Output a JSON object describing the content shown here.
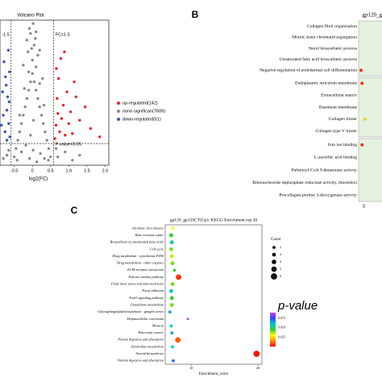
{
  "chart_data": [
    {
      "type": "scatter",
      "title": "Volcano Plot",
      "xlabel": "log2(FC)",
      "xlim": [
        -0.89,
        2.1
      ],
      "ylim": [
        0,
        8.7
      ],
      "xticks": [
        -0.5,
        0,
        0.5,
        {
          "value": 1,
          "label": "1.0"
        },
        1.5,
        {
          "value": 2,
          "label": "2.0"
        }
      ],
      "vlines": [
        -0.585,
        0.585
      ],
      "vline_labels": [
        "-1.5",
        "FC=1.5"
      ],
      "hline": 1.3,
      "hline_label": "P-value=0.05",
      "series": [
        {
          "name": "up-regulated(142)",
          "color": "#e3262b",
          "x": [
            0.62,
            0.65,
            0.7,
            0.68,
            0.75,
            0.8,
            0.72,
            0.85,
            0.9,
            0.95,
            1.0,
            1.05,
            0.78,
            1.1,
            1.2,
            1.3,
            1.45,
            1.6,
            1.85,
            0.66,
            0.88,
            1.15
          ],
          "values": [
            1.6,
            2.4,
            3.1,
            4.0,
            2.0,
            2.8,
            5.2,
            3.6,
            1.8,
            4.4,
            2.5,
            3.2,
            6.4,
            1.9,
            4.1,
            2.7,
            3.5,
            2.2,
            1.7,
            5.8,
            6.8,
            5.0
          ]
        },
        {
          "name": "none-significan(7609)",
          "color": "#8a8a8a",
          "x": [
            -0.5,
            -0.45,
            -0.4,
            -0.35,
            -0.3,
            -0.25,
            -0.2,
            -0.15,
            -0.1,
            -0.05,
            0,
            0.05,
            0.1,
            0.15,
            0.2,
            0.25,
            0.3,
            0.35,
            0.4,
            0.45,
            0.5,
            -0.42,
            -0.3,
            -0.18,
            -0.08,
            0.02,
            0.12,
            0.22,
            0.33,
            0.44,
            -0.35,
            -0.22,
            -0.1,
            0.0,
            0.1,
            0.2,
            0.32,
            -0.25,
            -0.12,
            0.05,
            0.15,
            0.28,
            -0.15,
            -0.05,
            0.08,
            0.2,
            -0.08,
            0.02,
            0.1,
            -0.02,
            0.7,
            0.9,
            1.1,
            -0.7,
            -0.8,
            0.65,
            1.3,
            -0.65,
            -0.05,
            0.03
          ],
          "values": [
            0.5,
            1.0,
            1.5,
            2.0,
            2.5,
            3.0,
            3.5,
            4.0,
            4.5,
            5.0,
            5.5,
            5.0,
            4.5,
            4.0,
            3.5,
            3.0,
            2.5,
            2.0,
            1.5,
            1.0,
            0.5,
            0.3,
            0.8,
            1.2,
            0.4,
            0.9,
            0.2,
            0.7,
            0.4,
            0.3,
            3.0,
            4.6,
            5.6,
            6.3,
            5.9,
            4.9,
            3.6,
            6.0,
            6.8,
            7.2,
            6.6,
            5.2,
            7.5,
            7.9,
            7.6,
            6.9,
            8.2,
            8.5,
            8.0,
            7.0,
            0.5,
            0.8,
            0.3,
            0.6,
            0.4,
            1.0,
            0.6,
            0.9,
            1.8,
            2.7
          ]
        },
        {
          "name": "down-regulated(51)",
          "color": "#3a53b5",
          "x": [
            -0.62,
            -0.65,
            -0.7,
            -0.68,
            -0.75,
            -0.8,
            -0.72,
            -0.85,
            -0.63,
            -0.78,
            -0.66,
            -0.7,
            -0.82,
            -0.64,
            -0.74
          ],
          "values": [
            1.7,
            2.5,
            3.3,
            4.1,
            2.0,
            3.0,
            4.8,
            2.4,
            5.6,
            6.2,
            6.9,
            1.5,
            4.4,
            3.8,
            5.3
          ]
        }
      ]
    },
    {
      "type": "dot",
      "label": "B",
      "title": "gp120_g",
      "xlabel": "E",
      "xlim": [
        0,
        1
      ],
      "categories": [
        "Collagen fibril organization",
        "Mitotic sister chromatid segregation",
        "Sterol biosynthetic process",
        "Unsaturated fatty acid biosynthetic process",
        "Negative regulation of endodermal cell differentiation",
        "Endoplasmic reticulum membrane",
        "Extracellular matrix",
        "Basement membrane",
        "Collagen trimer",
        "Collagen type V trimer",
        "Iron ion binding",
        "L-ascorbic acid binding",
        "Palmitoyl-CoA 9-desaturase activity",
        "Ribonucleoside-diphosphate reductase activity, thioredoxi",
        "Procollagen-proline 3-dioxygenase activity"
      ],
      "values": [
        null,
        null,
        null,
        null,
        0.05,
        0.07,
        null,
        null,
        0.13,
        null,
        0.07,
        null,
        null,
        null,
        null
      ],
      "colors": [
        null,
        null,
        null,
        null,
        "#e8321e",
        "#e8321e",
        null,
        null,
        "#e6d21e",
        null,
        "#e8321e",
        null,
        null,
        null,
        null
      ]
    },
    {
      "type": "dot",
      "label": "C",
      "title": "gp120_gp120CT(Up): KEGG Enrichment top 20",
      "xlabel": "Enrichment_score",
      "xlim": [
        6.1,
        20.6
      ],
      "xticks": [
        10,
        20
      ],
      "categories": [
        "Alcoholic liver disease",
        "Base excision repair",
        "Biosynthesis of unsaturated fatty acids",
        "Cell cycle",
        "Drug metabolism - cytochrome P450",
        "Drug metabolism - other enzymes",
        "ECM-receptor interaction",
        "Fanconi anemia pathway",
        "Fluid shear stress and atherosclerosis",
        "Focal adhesion",
        "FoxO signaling pathway",
        "Glutathione metabolism",
        "Glycosphingolipid biosynthesis - ganglio series",
        "Hepatocellular carcinoma",
        "Malaria",
        "Pancreatic cancer",
        "Protein digestion and absorption",
        "Pyrimidine metabolism",
        "Steroid biosynthesis",
        "Vitamin digestion and absorption"
      ],
      "values": [
        7.2,
        7.0,
        7.1,
        7.0,
        7.1,
        7.2,
        7.5,
        8.1,
        7.2,
        7.0,
        7.1,
        7.1,
        6.8,
        9.5,
        7.0,
        7.1,
        8.0,
        7.2,
        19.8,
        7.3
      ],
      "counts": [
        2,
        3,
        3,
        3,
        3,
        3,
        2,
        5,
        3,
        3,
        3,
        3,
        2,
        1,
        2,
        2,
        5,
        2,
        6,
        2
      ],
      "pvalues": [
        0.03,
        0.045,
        0.055,
        0.04,
        0.035,
        0.04,
        0.045,
        0.005,
        0.04,
        0.06,
        0.045,
        0.04,
        0.065,
        0.085,
        0.06,
        0.065,
        0.01,
        0.06,
        0.002,
        0.07
      ],
      "size_legend": {
        "title": "Count",
        "values": [
          2,
          3,
          4,
          5,
          6
        ]
      },
      "color_legend": {
        "title": "p-value",
        "lim": [
          0,
          0.09
        ],
        "ticks": [
          0.075,
          {
            "value": 0.05,
            "label": "0.050"
          },
          0.025
        ]
      }
    }
  ]
}
